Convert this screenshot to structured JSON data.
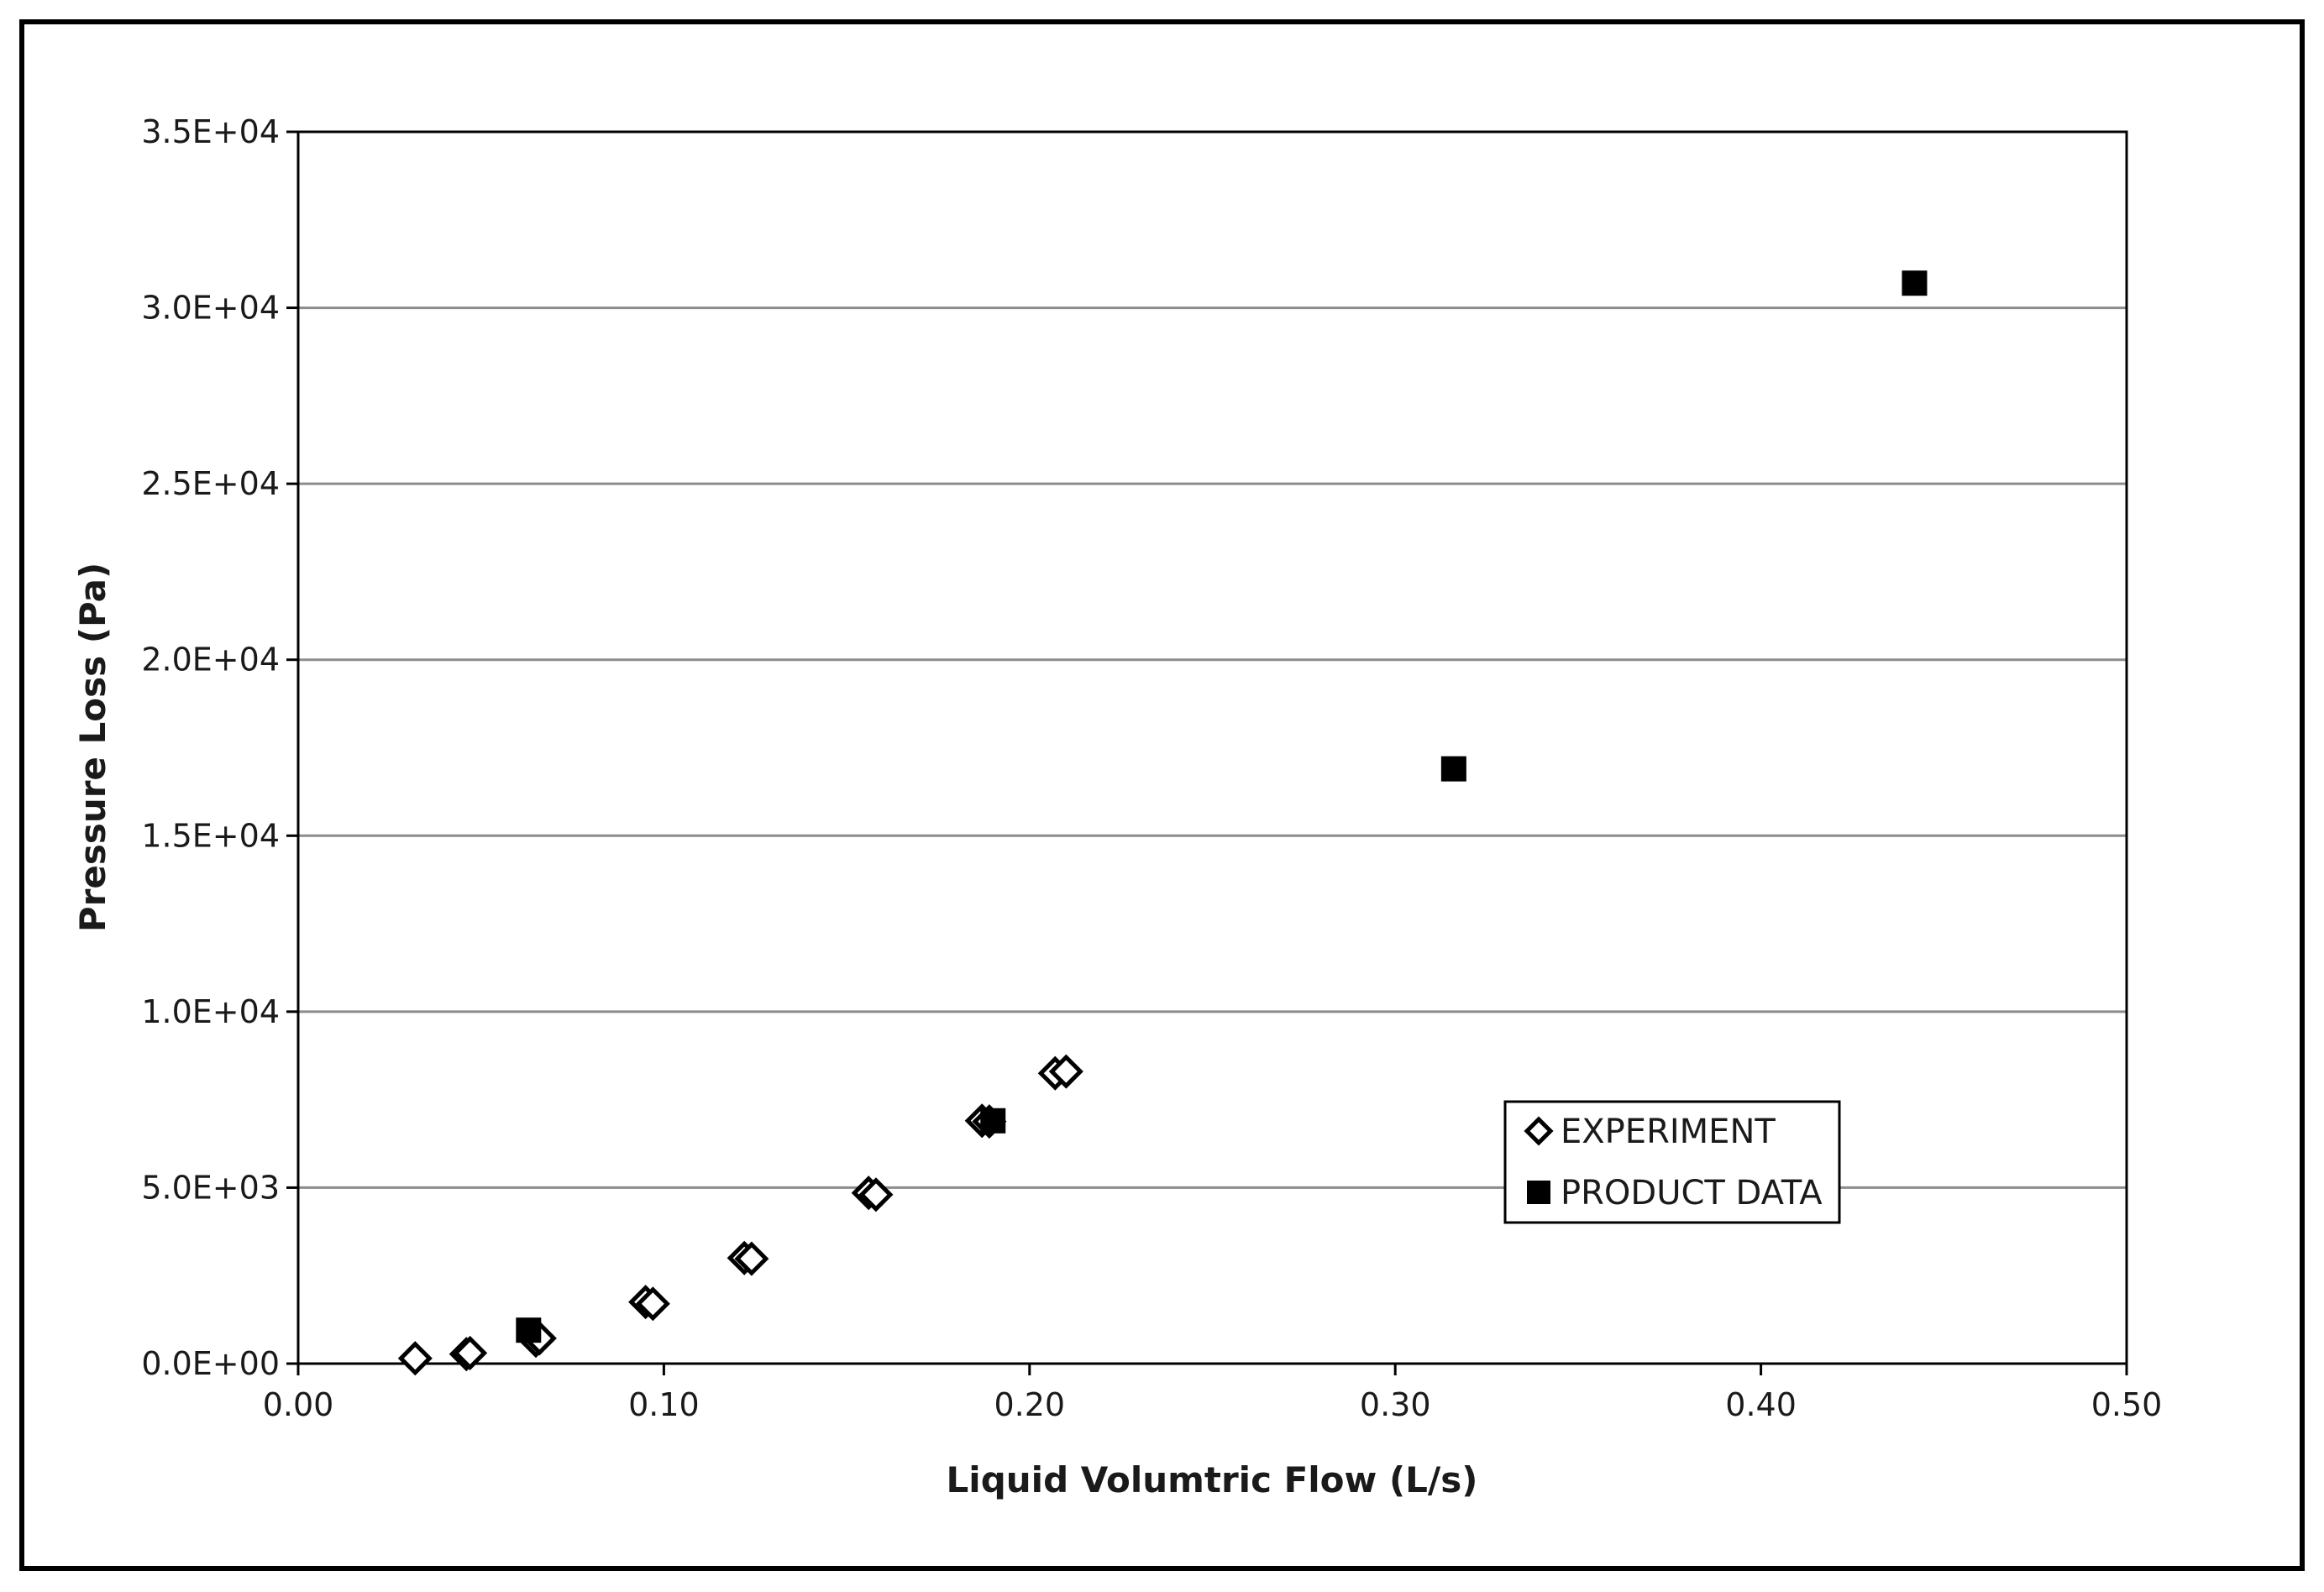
{
  "chart_data": {
    "type": "scatter",
    "title": "",
    "xlabel": "Liquid Volumtric Flow (L/s)",
    "ylabel": "Pressure Loss (Pa)",
    "xlim": [
      0,
      0.5
    ],
    "ylim": [
      0,
      35000
    ],
    "x_ticks": [
      "0.00",
      "0.10",
      "0.20",
      "0.30",
      "0.40",
      "0.50"
    ],
    "y_ticks": [
      "0.0E+00",
      "5.0E+03",
      "1.0E+04",
      "1.5E+04",
      "2.0E+04",
      "2.5E+04",
      "3.0E+04",
      "3.5E+04"
    ],
    "grid": "horizontal",
    "legend_position": "bottom-right",
    "series": [
      {
        "name": "EXPERIMENT",
        "marker": "open-diamond",
        "color": "#000000",
        "points": [
          {
            "x": 0.032,
            "y": 150
          },
          {
            "x": 0.046,
            "y": 270
          },
          {
            "x": 0.047,
            "y": 300
          },
          {
            "x": 0.065,
            "y": 650
          },
          {
            "x": 0.066,
            "y": 720
          },
          {
            "x": 0.095,
            "y": 1750
          },
          {
            "x": 0.097,
            "y": 1700
          },
          {
            "x": 0.122,
            "y": 3000
          },
          {
            "x": 0.124,
            "y": 2980
          },
          {
            "x": 0.156,
            "y": 4850
          },
          {
            "x": 0.158,
            "y": 4800
          },
          {
            "x": 0.187,
            "y": 6900
          },
          {
            "x": 0.189,
            "y": 6880
          },
          {
            "x": 0.207,
            "y": 8250
          },
          {
            "x": 0.21,
            "y": 8300
          }
        ]
      },
      {
        "name": "PRODUCT DATA",
        "marker": "filled-square",
        "color": "#000000",
        "points": [
          {
            "x": 0.063,
            "y": 950
          },
          {
            "x": 0.19,
            "y": 6900
          },
          {
            "x": 0.316,
            "y": 16900
          },
          {
            "x": 0.442,
            "y": 30700
          }
        ]
      }
    ]
  }
}
